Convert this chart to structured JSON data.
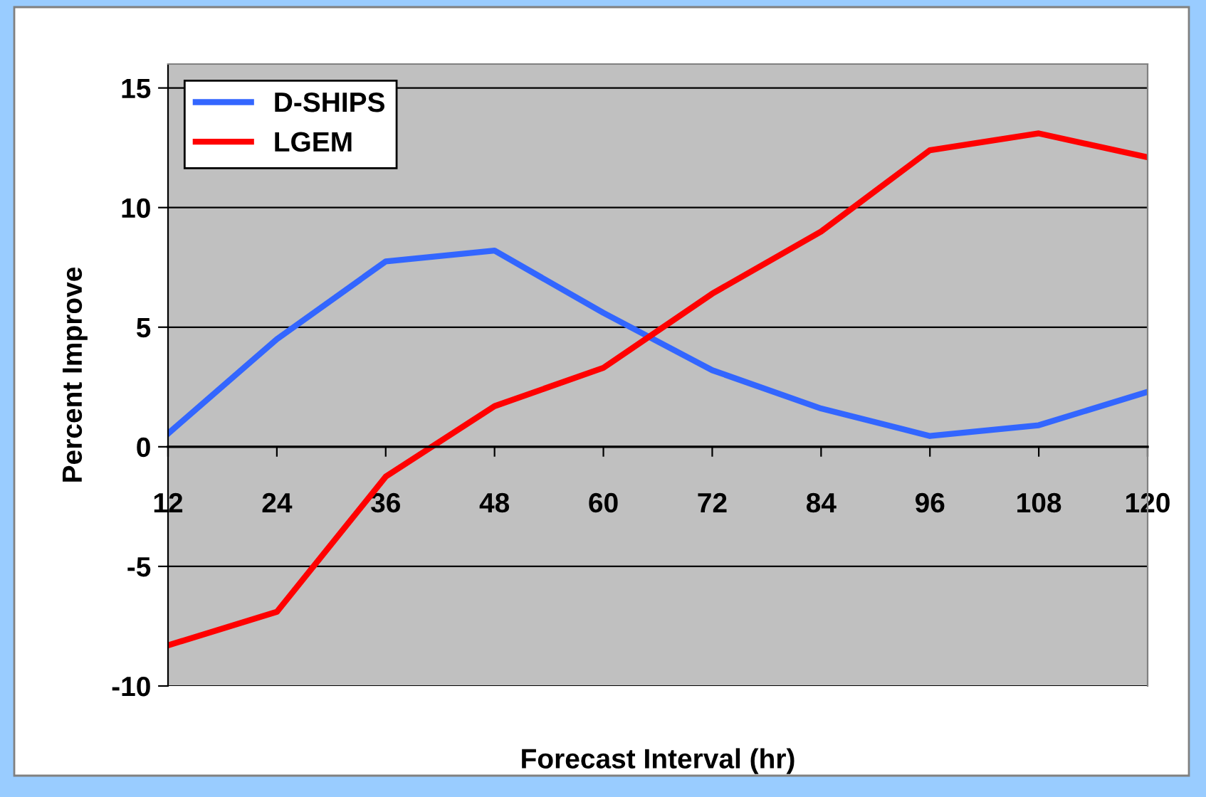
{
  "chart_data": {
    "type": "line",
    "xlabel": "Forecast Interval (hr)",
    "ylabel": "Percent Improve",
    "categories": [
      "12",
      "24",
      "36",
      "48",
      "60",
      "72",
      "84",
      "96",
      "108",
      "120"
    ],
    "series": [
      {
        "name": "D-SHIPS",
        "color": "#3366ff",
        "values": [
          0.55,
          4.5,
          7.75,
          8.2,
          5.6,
          3.2,
          1.6,
          0.45,
          0.9,
          2.3
        ]
      },
      {
        "name": "LGEM",
        "color": "#ff0000",
        "values": [
          -8.3,
          -6.9,
          -1.25,
          1.7,
          3.3,
          6.4,
          9.0,
          12.4,
          13.1,
          12.1
        ]
      }
    ],
    "ylim": [
      -10,
      16
    ],
    "yticks": [
      -10,
      -5,
      0,
      5,
      10,
      15
    ],
    "grid": "y",
    "legend": "top left",
    "marker": "none",
    "line_style": "solid"
  }
}
